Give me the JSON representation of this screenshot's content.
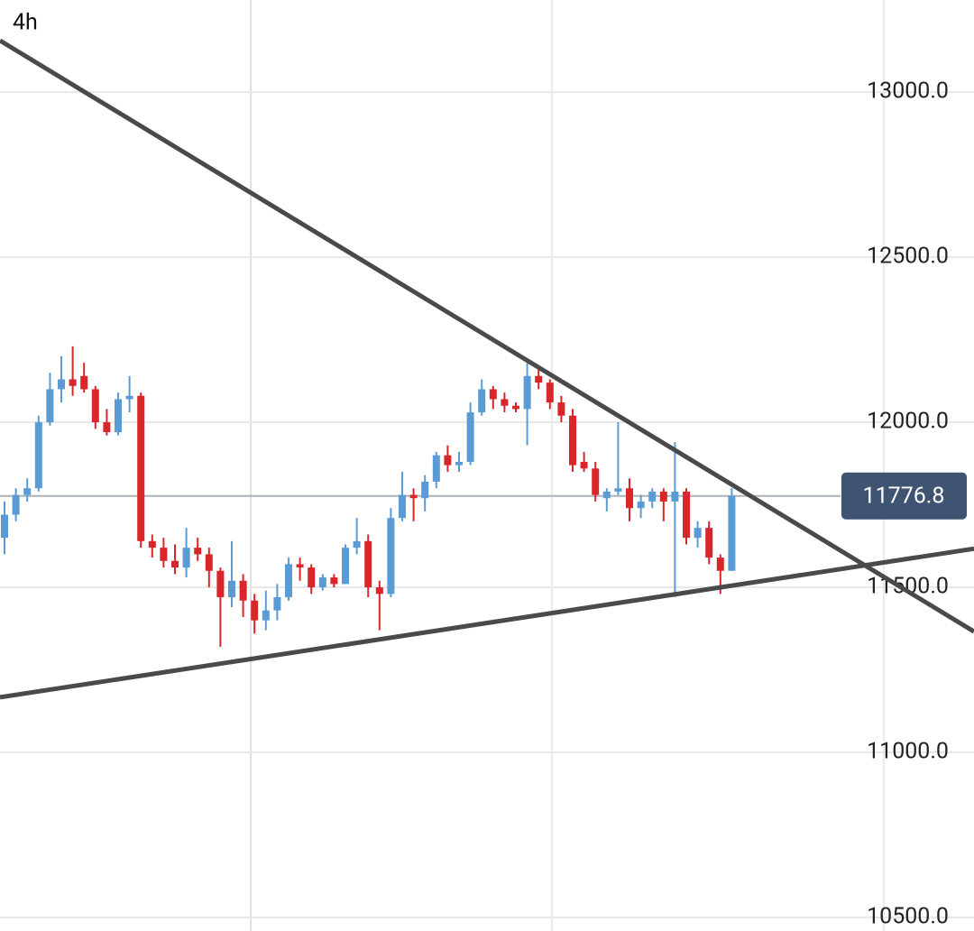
{
  "chart_data": {
    "type": "candlestick",
    "interval": "4h",
    "ylim": [
      10459,
      13279
    ],
    "yticks": [
      {
        "value": 13000,
        "label": "13000.0"
      },
      {
        "value": 12500,
        "label": "12500.0"
      },
      {
        "value": 12000,
        "label": "12000.0"
      },
      {
        "value": 11500,
        "label": "11500.0"
      },
      {
        "value": 11000,
        "label": "11000.0"
      },
      {
        "value": 10500,
        "label": "10500.0"
      }
    ],
    "grid": true,
    "last_price": 11776.8,
    "up_color": "#5b9bd5",
    "down_color": "#d9262b",
    "open": [
      11650,
      11720,
      11780,
      11800,
      12000,
      12100,
      12130,
      12140,
      12100,
      12000,
      11970,
      12070,
      12080,
      11640,
      11620,
      11580,
      11560,
      11620,
      11600,
      11550,
      11470,
      11520,
      11460,
      11400,
      11430,
      11470,
      11570,
      11560,
      11500,
      11530,
      11510,
      11620,
      11640,
      11500,
      11480,
      11710,
      11780,
      11770,
      11820,
      11900,
      11870,
      11880,
      12030,
      12100,
      12070,
      12050,
      12040,
      12140,
      12120,
      12060,
      12020,
      11880,
      11860,
      11770,
      11790,
      11800,
      11740,
      11760,
      11790,
      11760,
      11790,
      11650,
      11680,
      11590,
      11550
    ],
    "high": [
      11760,
      11800,
      11830,
      12020,
      12150,
      12200,
      12230,
      12180,
      12110,
      12040,
      12090,
      12140,
      12090,
      11660,
      11650,
      11630,
      11680,
      11650,
      11620,
      11560,
      11640,
      11540,
      11480,
      11490,
      11510,
      11590,
      11590,
      11570,
      11540,
      11540,
      11630,
      11710,
      11660,
      11520,
      11740,
      11850,
      11800,
      11840,
      11910,
      11930,
      11910,
      12060,
      12130,
      12110,
      12090,
      12060,
      12180,
      12170,
      12130,
      12080,
      12040,
      11910,
      11880,
      11800,
      12000,
      11830,
      11780,
      11800,
      11800,
      11940,
      11800,
      11700,
      11700,
      11600,
      11800
    ],
    "low": [
      11600,
      11700,
      11760,
      11790,
      11990,
      12060,
      12080,
      12090,
      11980,
      11960,
      11960,
      12030,
      11620,
      11590,
      11560,
      11540,
      11530,
      11580,
      11500,
      11320,
      11440,
      11410,
      11360,
      11370,
      11400,
      11460,
      11520,
      11480,
      11490,
      11500,
      11510,
      11600,
      11470,
      11370,
      11470,
      11700,
      11700,
      11730,
      11800,
      11850,
      11850,
      11870,
      12020,
      12040,
      12030,
      12030,
      11930,
      12100,
      12040,
      12000,
      11850,
      11850,
      11760,
      11730,
      11780,
      11700,
      11710,
      11740,
      11700,
      11470,
      11630,
      11620,
      11570,
      11480,
      11550
    ],
    "close": [
      11720,
      11780,
      11800,
      12000,
      12100,
      12130,
      12110,
      12100,
      12000,
      11970,
      12070,
      12080,
      11640,
      11620,
      11580,
      11560,
      11620,
      11600,
      11550,
      11470,
      11520,
      11460,
      11400,
      11430,
      11470,
      11570,
      11560,
      11500,
      11530,
      11510,
      11620,
      11640,
      11500,
      11480,
      11710,
      11780,
      11770,
      11820,
      11900,
      11870,
      11880,
      12030,
      12100,
      12070,
      12050,
      12040,
      12140,
      12120,
      12060,
      12020,
      11870,
      11860,
      11780,
      11790,
      11800,
      11740,
      11760,
      11790,
      11760,
      11790,
      11650,
      11680,
      11590,
      11550,
      11777
    ],
    "trendlines": [
      {
        "start": 13156,
        "end": 11366,
        "color": "#4a4a4a"
      },
      {
        "start": 11167,
        "end": 11617,
        "color": "#4a4a4a"
      }
    ]
  }
}
